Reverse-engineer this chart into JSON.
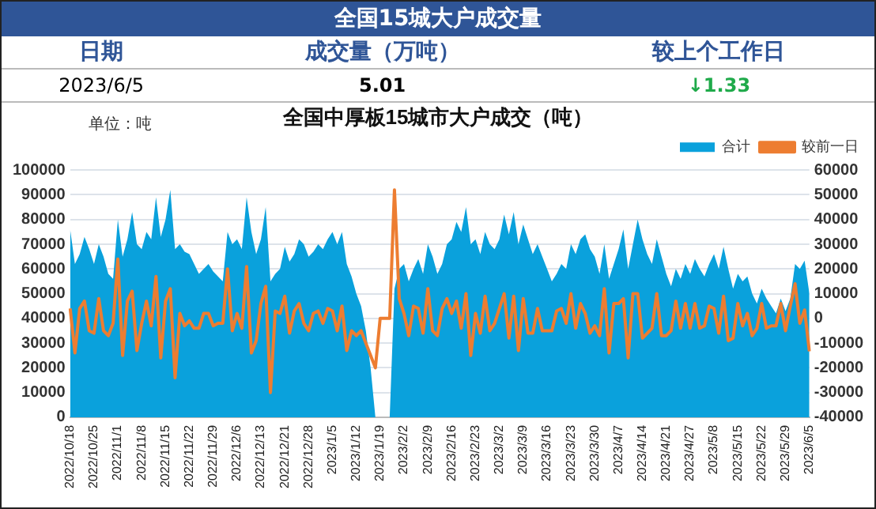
{
  "chart_data": [
    {
      "type": "other",
      "title": "全国15城大户成交量",
      "annotations": [
        "日期",
        "成交量（万吨）",
        "较上个工作日",
        "2023/6/5",
        "5.01",
        "↓1.33"
      ]
    },
    {
      "type": "area",
      "title": "全国中厚板15城市大户成交（吨）",
      "annotations": [
        "单位：吨"
      ],
      "categories": [
        "2022/10/18",
        null,
        null,
        null,
        null,
        "2022/10/25",
        null,
        null,
        null,
        null,
        "2022/11/1",
        null,
        null,
        null,
        null,
        "2022/11/8",
        null,
        null,
        null,
        null,
        "2022/11/15",
        null,
        null,
        null,
        null,
        "2022/11/22",
        null,
        null,
        null,
        null,
        "2022/11/29",
        null,
        null,
        null,
        null,
        "2022/12/6",
        null,
        null,
        null,
        null,
        "2022/12/13",
        null,
        null,
        null,
        null,
        "2022/12/21",
        null,
        null,
        null,
        null,
        "2022/12/28",
        null,
        null,
        null,
        null,
        "2023/1/5",
        null,
        null,
        null,
        null,
        "2023/1/12",
        null,
        null,
        null,
        null,
        "2023/1/19",
        null,
        null,
        null,
        null,
        "2023/2/2",
        null,
        null,
        null,
        null,
        "2023/2/9",
        null,
        null,
        null,
        null,
        "2023/2/16",
        null,
        null,
        null,
        null,
        "2023/2/23",
        null,
        null,
        null,
        null,
        "2023/3/2",
        null,
        null,
        null,
        null,
        "2023/3/9",
        null,
        null,
        null,
        null,
        "2023/3/16",
        null,
        null,
        null,
        null,
        "2023/3/23",
        null,
        null,
        null,
        null,
        "2023/3/30",
        null,
        null,
        null,
        null,
        "2023/4/7",
        null,
        null,
        null,
        null,
        "2023/4/14",
        null,
        null,
        null,
        null,
        "2023/4/21",
        null,
        null,
        null,
        null,
        "2023/4/27",
        null,
        null,
        null,
        null,
        "2023/5/8",
        null,
        null,
        null,
        null,
        "2023/5/15",
        null,
        null,
        null,
        null,
        "2023/5/22",
        null,
        null,
        null,
        null,
        "2023/5/29",
        null,
        null,
        null,
        null,
        "2023/6/5"
      ],
      "series": [
        {
          "name": "合计",
          "type": "area",
          "color": "#0aa1dc",
          "values": [
            76000,
            62000,
            66000,
            73000,
            68000,
            62000,
            70000,
            65000,
            58000,
            56000,
            80000,
            65000,
            72000,
            83000,
            70000,
            68000,
            75000,
            72000,
            89000,
            73000,
            80000,
            92000,
            68000,
            70000,
            67000,
            66000,
            62000,
            58000,
            60000,
            62000,
            59000,
            57000,
            55000,
            75000,
            70000,
            72000,
            68000,
            89000,
            75000,
            66000,
            72000,
            85000,
            55000,
            58000,
            60000,
            69000,
            63000,
            66000,
            72000,
            70000,
            65000,
            67000,
            70000,
            68000,
            72000,
            75000,
            70000,
            75000,
            62000,
            57000,
            50000,
            45000,
            35000,
            20000,
            0,
            0,
            0,
            0,
            52000,
            60000,
            62000,
            55000,
            60000,
            64000,
            58000,
            70000,
            65000,
            58000,
            62000,
            70000,
            72000,
            79000,
            75000,
            85000,
            70000,
            72000,
            66000,
            75000,
            70000,
            68000,
            72000,
            82000,
            74000,
            83000,
            70000,
            78000,
            72000,
            66000,
            70000,
            65000,
            60000,
            55000,
            58000,
            62000,
            60000,
            70000,
            66000,
            72000,
            74000,
            68000,
            65000,
            58000,
            70000,
            56000,
            62000,
            68000,
            76000,
            60000,
            70000,
            80000,
            72000,
            66000,
            62000,
            72000,
            65000,
            58000,
            53000,
            60000,
            56000,
            62000,
            58000,
            64000,
            60000,
            57000,
            62000,
            66000,
            60000,
            69000,
            60000,
            52000,
            58000,
            55000,
            57000,
            50000,
            46000,
            52000,
            48000,
            45000,
            42000,
            48000,
            43000,
            48000,
            62000,
            60000,
            63400,
            50100
          ]
        },
        {
          "name": "较前一日",
          "type": "line",
          "axis": "y2",
          "color": "#ed7d31",
          "values": [
            4000,
            -14000,
            4000,
            7000,
            -5000,
            -6000,
            8000,
            -5000,
            -7000,
            -2000,
            24000,
            -15000,
            7000,
            11000,
            -13000,
            -2000,
            7000,
            -3000,
            17000,
            -16000,
            7000,
            12000,
            -24000,
            2000,
            -3000,
            -1000,
            -4000,
            -4000,
            2000,
            2000,
            -3000,
            -2000,
            -2000,
            20000,
            -5000,
            2000,
            -4000,
            21000,
            -14000,
            -9000,
            6000,
            13000,
            -30000,
            3000,
            2000,
            9000,
            -6000,
            3000,
            6000,
            -2000,
            -5000,
            2000,
            3000,
            -2000,
            4000,
            3000,
            -5000,
            5000,
            -13000,
            -5000,
            -7000,
            -5000,
            -10000,
            -15000,
            -20000,
            0,
            0,
            0,
            52000,
            8000,
            2000,
            -7000,
            5000,
            4000,
            -6000,
            12000,
            -5000,
            -7000,
            4000,
            8000,
            2000,
            7000,
            -4000,
            10000,
            -15000,
            2000,
            -6000,
            9000,
            -5000,
            -2000,
            4000,
            10000,
            -8000,
            9000,
            -13000,
            8000,
            -6000,
            -6000,
            4000,
            -5000,
            -5000,
            -5000,
            3000,
            4000,
            -2000,
            10000,
            -4000,
            6000,
            2000,
            -6000,
            -3000,
            -7000,
            12000,
            -14000,
            6000,
            6000,
            8000,
            -16000,
            10000,
            10000,
            -8000,
            -6000,
            -4000,
            10000,
            -7000,
            -7000,
            -5000,
            7000,
            -4000,
            6000,
            -4000,
            6000,
            -4000,
            -3000,
            5000,
            4000,
            -6000,
            9000,
            -9000,
            -8000,
            6000,
            -3000,
            2000,
            -7000,
            -4000,
            6000,
            -4000,
            -3000,
            -3000,
            6000,
            -5000,
            5000,
            14000,
            -2000,
            3400,
            -13300
          ]
        }
      ],
      "ylim": [
        0,
        100000
      ],
      "yticks": [
        0,
        10000,
        20000,
        30000,
        40000,
        50000,
        60000,
        70000,
        80000,
        90000,
        100000
      ],
      "y2lim": [
        -40000,
        60000
      ],
      "y2ticks": [
        -40000,
        -30000,
        -20000,
        -10000,
        0,
        10000,
        20000,
        30000,
        40000,
        50000,
        60000
      ],
      "grid": "y",
      "legend": "top right",
      "marker": "none"
    }
  ]
}
